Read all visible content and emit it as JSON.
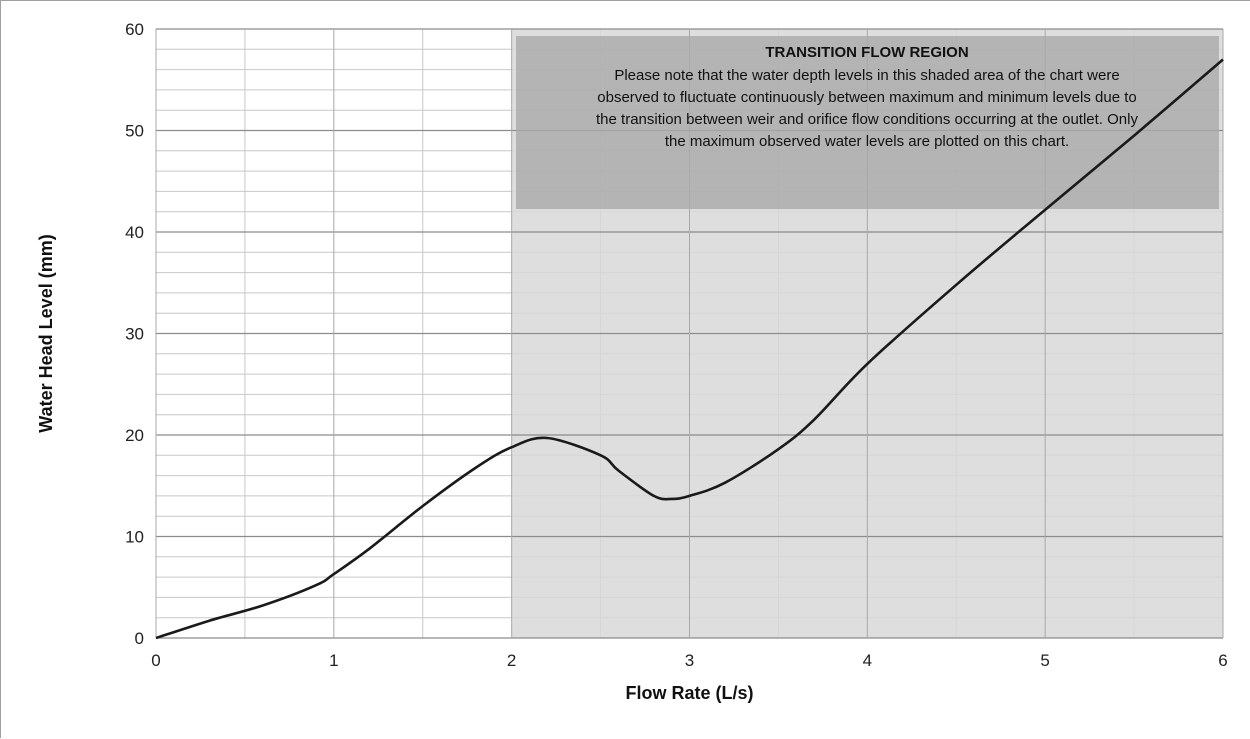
{
  "chart_data": {
    "type": "line",
    "xlabel": "Flow Rate (L/s)",
    "ylabel": "Water Head Level (mm)",
    "xlim": [
      0,
      6
    ],
    "ylim": [
      0,
      60
    ],
    "x_ticks": [
      "0",
      "1",
      "2",
      "3",
      "4",
      "5",
      "6"
    ],
    "y_ticks": [
      "0",
      "10",
      "20",
      "30",
      "40",
      "50",
      "60"
    ],
    "grid": true,
    "shaded_region": {
      "x_range": [
        2,
        6
      ],
      "label": "TRANSITION FLOW REGION",
      "note": [
        "Please note that the water depth levels in this shaded area of the chart were",
        "observed to fluctuate continuously between maximum and minimum levels due to",
        "the transition between weir and orifice flow conditions occurring at the outlet. Only",
        "the maximum observed water levels are plotted on this chart."
      ],
      "colors": {
        "region": "#d8d8d8",
        "note_box": "#a9a9a9"
      }
    },
    "series": [
      {
        "x": [
          0,
          0.3,
          0.6,
          0.9,
          1.0,
          1.2,
          1.5,
          1.8,
          2.0,
          2.2,
          2.5,
          2.6,
          2.8,
          2.9,
          3.0,
          3.2,
          3.5,
          3.7,
          4.0,
          4.5,
          5.0,
          5.5,
          6.0
        ],
        "y": [
          0,
          1.7,
          3.2,
          5.2,
          6.3,
          8.8,
          13.0,
          16.8,
          18.8,
          19.7,
          18.0,
          16.5,
          14.0,
          13.7,
          14.0,
          15.3,
          18.6,
          21.5,
          27.0,
          34.8,
          42.2,
          49.5,
          57.0
        ],
        "color": "#1a1a1a"
      }
    ]
  }
}
